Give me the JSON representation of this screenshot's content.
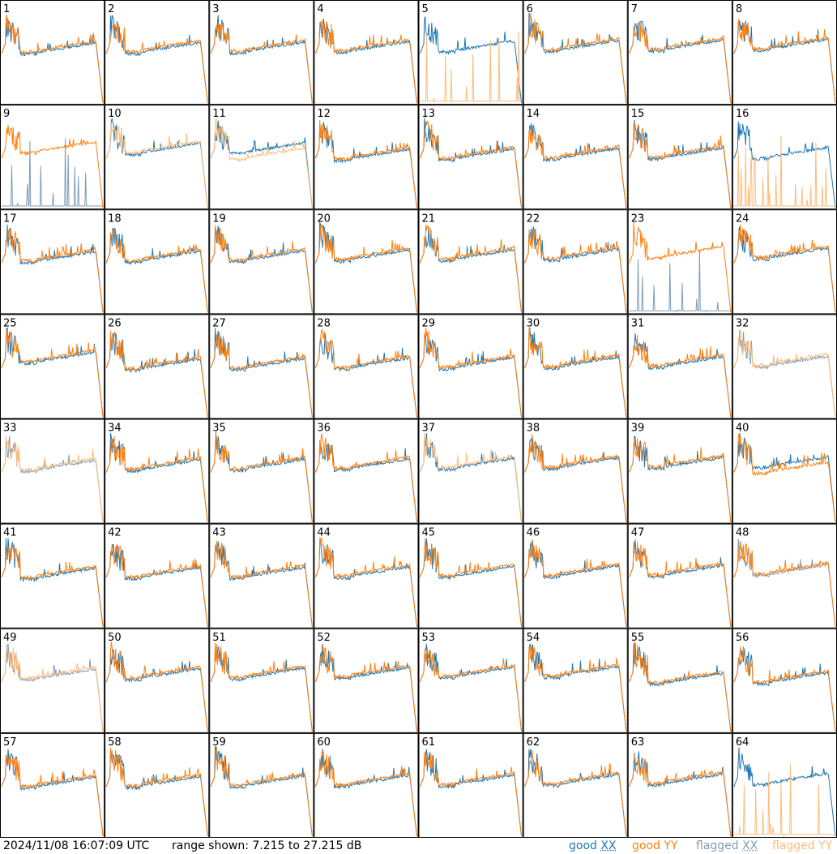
{
  "footer": {
    "timestamp": "2024/11/08 16:07:09 UTC",
    "range_text": "range shown: 7.215 to 27.215 dB"
  },
  "legend": [
    {
      "id": "good_xx",
      "word": "good",
      "pol": "XX",
      "color": "#1f77b4"
    },
    {
      "id": "good_yy",
      "word": "good",
      "pol": "YY",
      "color": "#ff7f0e"
    },
    {
      "id": "flagged_xx",
      "word": "flagged",
      "pol": "XX",
      "color": "#7f9cb8"
    },
    {
      "id": "flagged_yy",
      "word": "flagged",
      "pol": "YY",
      "color": "#ffbb78"
    }
  ],
  "chart_data": {
    "type": "line",
    "grid": "8x8 small multiples",
    "y_range_db": [
      7.215,
      27.215
    ],
    "panels": [
      {
        "label": "1",
        "xx": "good",
        "yy": "good"
      },
      {
        "label": "2",
        "xx": "good",
        "yy": "good"
      },
      {
        "label": "3",
        "xx": "good",
        "yy": "good"
      },
      {
        "label": "4",
        "xx": "good",
        "yy": "good"
      },
      {
        "label": "5",
        "xx": "good",
        "yy": "flagged"
      },
      {
        "label": "6",
        "xx": "good",
        "yy": "good"
      },
      {
        "label": "7",
        "xx": "good",
        "yy": "good"
      },
      {
        "label": "8",
        "xx": "good",
        "yy": "good"
      },
      {
        "label": "9",
        "xx": "flagged",
        "yy": "good"
      },
      {
        "label": "10",
        "xx": "good",
        "yy": "flagged"
      },
      {
        "label": "11",
        "xx": "good",
        "yy": "flagged"
      },
      {
        "label": "12",
        "xx": "good",
        "yy": "good"
      },
      {
        "label": "13",
        "xx": "good",
        "yy": "good"
      },
      {
        "label": "14",
        "xx": "good",
        "yy": "good"
      },
      {
        "label": "15",
        "xx": "good",
        "yy": "good"
      },
      {
        "label": "16",
        "xx": "good",
        "yy": "flagged"
      },
      {
        "label": "17",
        "xx": "good",
        "yy": "good"
      },
      {
        "label": "18",
        "xx": "good",
        "yy": "good"
      },
      {
        "label": "19",
        "xx": "good",
        "yy": "good"
      },
      {
        "label": "20",
        "xx": "good",
        "yy": "good"
      },
      {
        "label": "21",
        "xx": "good",
        "yy": "good"
      },
      {
        "label": "22",
        "xx": "good",
        "yy": "good"
      },
      {
        "label": "23",
        "xx": "flagged",
        "yy": "good"
      },
      {
        "label": "24",
        "xx": "good",
        "yy": "good"
      },
      {
        "label": "25",
        "xx": "good",
        "yy": "good"
      },
      {
        "label": "26",
        "xx": "good",
        "yy": "good"
      },
      {
        "label": "27",
        "xx": "good",
        "yy": "good"
      },
      {
        "label": "28",
        "xx": "good",
        "yy": "good"
      },
      {
        "label": "29",
        "xx": "good",
        "yy": "good"
      },
      {
        "label": "30",
        "xx": "good",
        "yy": "good"
      },
      {
        "label": "31",
        "xx": "good",
        "yy": "good"
      },
      {
        "label": "32",
        "xx": "flagged",
        "yy": "flagged"
      },
      {
        "label": "33",
        "xx": "flagged",
        "yy": "flagged"
      },
      {
        "label": "34",
        "xx": "good",
        "yy": "good"
      },
      {
        "label": "35",
        "xx": "good",
        "yy": "good"
      },
      {
        "label": "36",
        "xx": "good",
        "yy": "good"
      },
      {
        "label": "37",
        "xx": "good",
        "yy": "flagged"
      },
      {
        "label": "38",
        "xx": "good",
        "yy": "good"
      },
      {
        "label": "39",
        "xx": "good",
        "yy": "good"
      },
      {
        "label": "40",
        "xx": "good",
        "yy": "good"
      },
      {
        "label": "41",
        "xx": "good",
        "yy": "good"
      },
      {
        "label": "42",
        "xx": "good",
        "yy": "good"
      },
      {
        "label": "43",
        "xx": "good",
        "yy": "good"
      },
      {
        "label": "44",
        "xx": "good",
        "yy": "good"
      },
      {
        "label": "45",
        "xx": "good",
        "yy": "good"
      },
      {
        "label": "46",
        "xx": "good",
        "yy": "good"
      },
      {
        "label": "47",
        "xx": "good",
        "yy": "good"
      },
      {
        "label": "48",
        "xx": "flagged",
        "yy": "good"
      },
      {
        "label": "49",
        "xx": "flagged",
        "yy": "flagged"
      },
      {
        "label": "50",
        "xx": "good",
        "yy": "good"
      },
      {
        "label": "51",
        "xx": "good",
        "yy": "good"
      },
      {
        "label": "52",
        "xx": "good",
        "yy": "good"
      },
      {
        "label": "53",
        "xx": "good",
        "yy": "good"
      },
      {
        "label": "54",
        "xx": "good",
        "yy": "good"
      },
      {
        "label": "55",
        "xx": "good",
        "yy": "good"
      },
      {
        "label": "56",
        "xx": "good",
        "yy": "good"
      },
      {
        "label": "57",
        "xx": "good",
        "yy": "good"
      },
      {
        "label": "58",
        "xx": "good",
        "yy": "good"
      },
      {
        "label": "59",
        "xx": "good",
        "yy": "good"
      },
      {
        "label": "60",
        "xx": "good",
        "yy": "good"
      },
      {
        "label": "61",
        "xx": "good",
        "yy": "good"
      },
      {
        "label": "62",
        "xx": "good",
        "yy": "good"
      },
      {
        "label": "63",
        "xx": "good",
        "yy": "good"
      },
      {
        "label": "64",
        "xx": "good",
        "yy": "flagged"
      }
    ]
  }
}
